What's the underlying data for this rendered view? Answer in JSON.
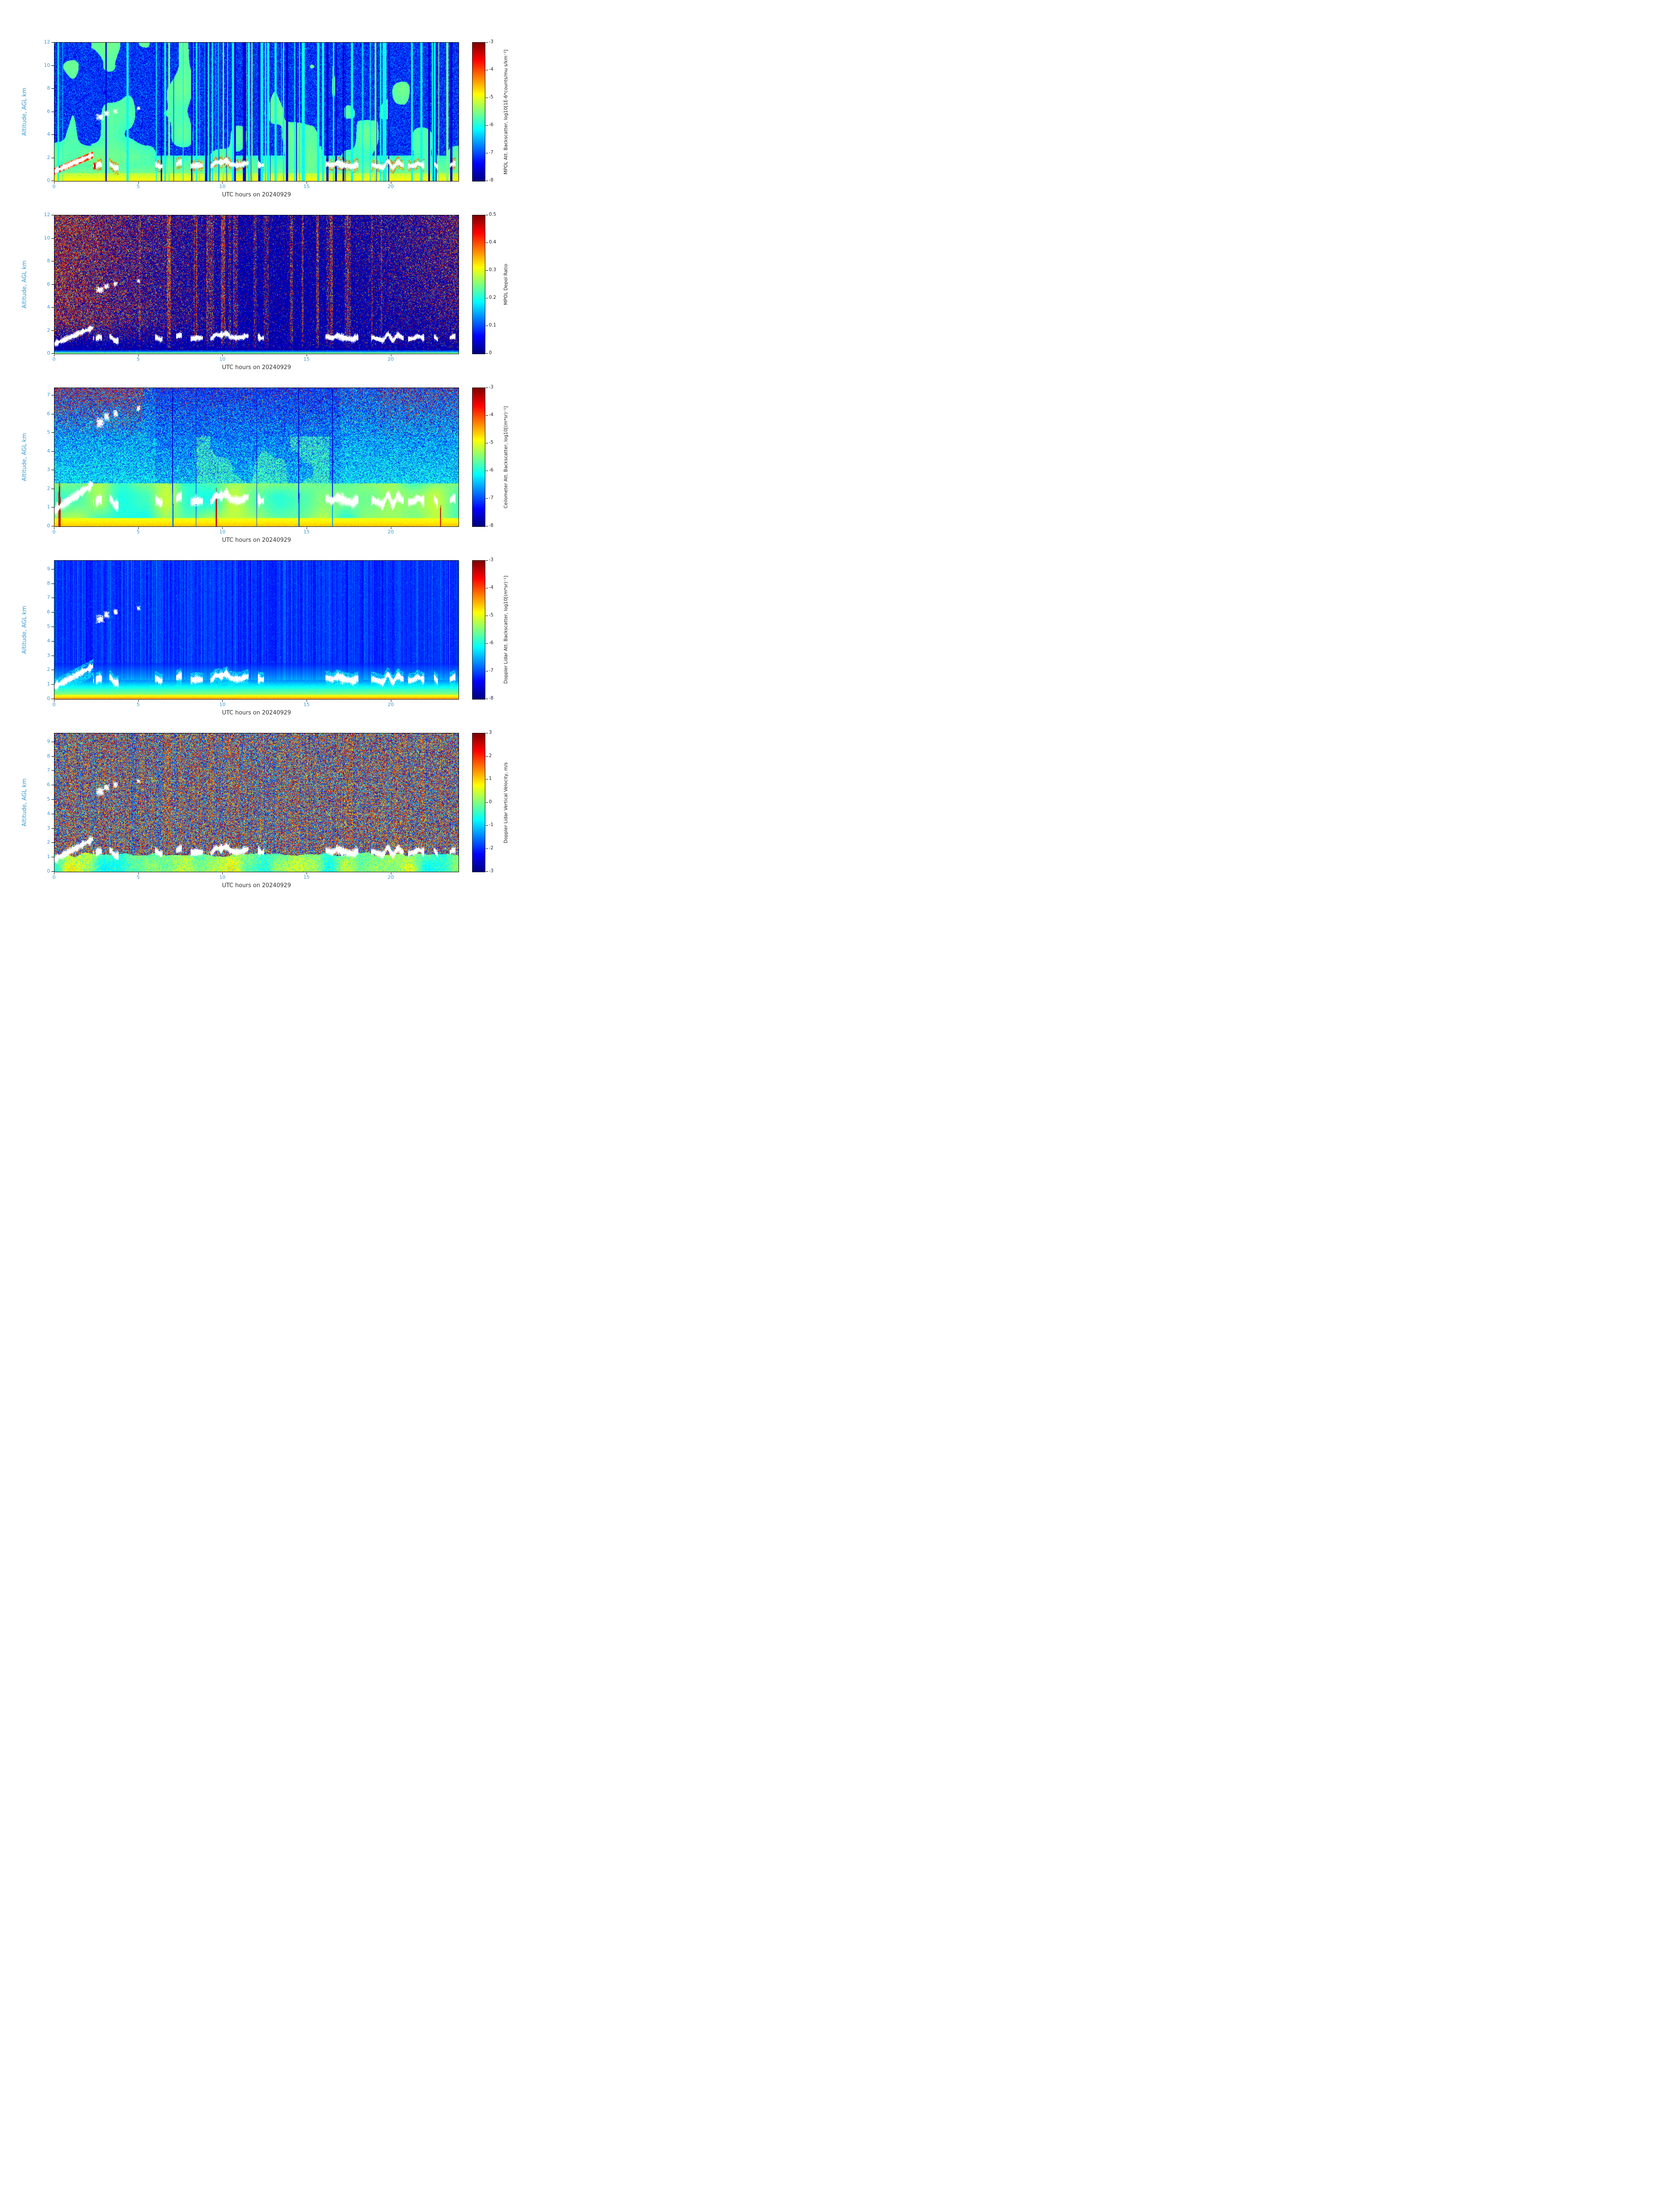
{
  "date": "20240929",
  "style_colors": {
    "axis_label_color": "#3a9ad5",
    "text_color": "#222222",
    "frame_color": "#000000",
    "background": "#ffffff"
  },
  "chart_data": [
    {
      "type": "heatmap",
      "pattern": "mpol-backscatter",
      "xlabel": "UTC hours on 20240929",
      "ylabel": "Altitude, AGL km",
      "x_range": [
        0,
        24
      ],
      "x_ticks": [
        0,
        5,
        10,
        15,
        20
      ],
      "y_range": [
        0,
        12
      ],
      "y_ticks": [
        0,
        2,
        4,
        6,
        8,
        10,
        12
      ],
      "colorbar_label": "MPOL Att. Backscatter, log10[1E-6*counts/mu s/km⁻²]",
      "colorbar_range": [
        -8,
        -3
      ],
      "colorbar_ticks": [
        -3,
        -4,
        -5,
        -6,
        -7,
        -8
      ],
      "colormap": "jet",
      "description": "Micropulse lidar attenuated backscatter curtain: green aerosol signal through low/mid levels, blue noise speckle aloft, many bright and dark vertical stripes, yellow-orange layer and white cloud blobs near 1-2 km, rising feature from 0-2.3 UTC."
    },
    {
      "type": "heatmap",
      "pattern": "mpol-depol",
      "xlabel": "UTC hours on 20240929",
      "ylabel": "Altitude, AGL km",
      "x_range": [
        0,
        24
      ],
      "x_ticks": [
        0,
        5,
        10,
        15,
        20
      ],
      "y_range": [
        0,
        12
      ],
      "y_ticks": [
        0,
        2,
        4,
        6,
        8,
        10,
        12
      ],
      "colorbar_label": "MPOL Depol Ratio",
      "colorbar_range": [
        0,
        0.5
      ],
      "colorbar_ticks": [
        0.5,
        0.4,
        0.3,
        0.2,
        0.1,
        0
      ],
      "colormap": "jet",
      "description": "Depolarization ratio mostly near 0 (dark blue) with dense high-depol red speckle in the noisy regions before ~10 UTC and after ~17 UTC plus vertical speckle bands mid-day; thin green line at the surface and white cloud blobs near 1 km."
    },
    {
      "type": "heatmap",
      "pattern": "ceilometer-backscatter",
      "xlabel": "UTC hours on 20240929",
      "ylabel": "Altitude, AGL km",
      "x_range": [
        0,
        24
      ],
      "x_ticks": [
        0,
        5,
        10,
        15,
        20
      ],
      "y_range": [
        0,
        7.4
      ],
      "y_ticks": [
        0,
        1,
        2,
        3,
        4,
        5,
        6,
        7
      ],
      "colorbar_label": "Ceilometer Att. Backscatter, log10[(m*sr)⁻¹]",
      "colorbar_range": [
        -8,
        -3
      ],
      "colorbar_ticks": [
        -3,
        -4,
        -5,
        -6,
        -7,
        -8
      ],
      "colormap": "jet",
      "description": "Ceilometer backscatter: yellow-green boundary layer below ~2 km, cyan/blue speckle aloft with orange noise near the top (strongest early and late), red precipitation streaks near the surface around 0.3, 7, 9.5, 14.5 and 16.5 UTC, white cloud blobs near 1-2 km."
    },
    {
      "type": "heatmap",
      "pattern": "doppler-backscatter",
      "xlabel": "UTC hours on 20240929",
      "ylabel": "Altitude, AGL km",
      "x_range": [
        0,
        24
      ],
      "x_ticks": [
        0,
        5,
        10,
        15,
        20
      ],
      "y_range": [
        0,
        9.6
      ],
      "y_ticks": [
        0,
        1,
        2,
        3,
        4,
        5,
        6,
        7,
        8,
        9
      ],
      "colorbar_label": "Doppler Lidar Att. Backscatter, log10[(m*sr)⁻¹]",
      "colorbar_range": [
        -8,
        -3
      ],
      "colorbar_ticks": [
        -3,
        -4,
        -5,
        -6,
        -7,
        -8
      ],
      "colormap": "jet",
      "description": "Doppler lidar backscatter: dark blue background with fine vertical column striping, yellow-to-cyan gradient in the lowest ~1 km, cyan halos and white cloud blobs along the cloud base near 1-2 km."
    },
    {
      "type": "heatmap",
      "pattern": "doppler-velocity",
      "xlabel": "UTC hours on 20240929",
      "ylabel": "Altitude, AGL km",
      "x_range": [
        0,
        24
      ],
      "x_ticks": [
        0,
        5,
        10,
        15,
        20
      ],
      "y_range": [
        0,
        9.6
      ],
      "y_ticks": [
        0,
        1,
        2,
        3,
        4,
        5,
        6,
        7,
        8,
        9
      ],
      "colorbar_label": "Doppler Lidar Vertical Velocity, m/s",
      "colorbar_range": [
        -3,
        3
      ],
      "colorbar_ticks": [
        3,
        2,
        1,
        0,
        -1,
        -2,
        -3
      ],
      "colormap": "jet",
      "description": "Vertical velocity: dense random red/blue speckle (noise) above the boundary layer giving a maroon texture with vertical striping, smoother green/cyan velocities near 0 m/s below ~1 km, white cloud blobs along cloud base."
    }
  ]
}
